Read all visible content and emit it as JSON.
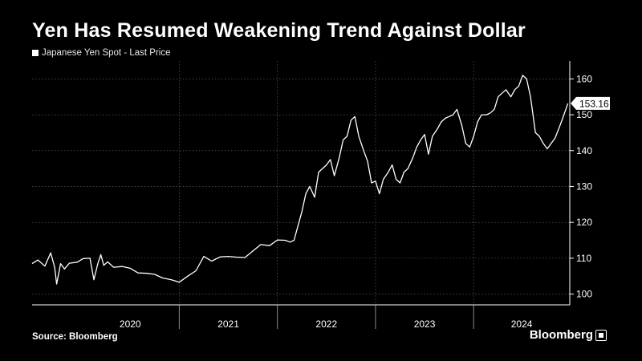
{
  "chart_data": {
    "type": "line",
    "title": "Yen Has Resumed Weakening Trend Against Dollar",
    "legend": "Japanese Yen Spot - Last Price",
    "legend_position": "top-left",
    "source": "Source: Bloomberg",
    "brand": "Bloomberg",
    "x_labels": [
      "2020",
      "2021",
      "2022",
      "2023",
      "2024"
    ],
    "x_range": [
      2019.5,
      2024.98
    ],
    "ylim": [
      97,
      165
    ],
    "yticks": [
      100,
      110,
      120,
      130,
      140,
      150,
      160
    ],
    "last_value_label": "153.16",
    "grid": true,
    "series": [
      {
        "line_color": "#ffffff",
        "x": [
          2019.5,
          2019.56,
          2019.63,
          2019.69,
          2019.73,
          2019.75,
          2019.79,
          2019.83,
          2019.88,
          2019.96,
          2020.02,
          2020.09,
          2020.13,
          2020.17,
          2020.2,
          2020.23,
          2020.27,
          2020.33,
          2020.42,
          2020.5,
          2020.58,
          2020.67,
          2020.75,
          2020.83,
          2020.92,
          2021.0,
          2021.08,
          2021.17,
          2021.25,
          2021.33,
          2021.42,
          2021.5,
          2021.58,
          2021.67,
          2021.75,
          2021.83,
          2021.92,
          2022.0,
          2022.08,
          2022.13,
          2022.17,
          2022.21,
          2022.25,
          2022.29,
          2022.33,
          2022.38,
          2022.42,
          2022.46,
          2022.5,
          2022.54,
          2022.58,
          2022.63,
          2022.67,
          2022.71,
          2022.75,
          2022.79,
          2022.83,
          2022.88,
          2022.92,
          2022.96,
          2023.0,
          2023.04,
          2023.08,
          2023.13,
          2023.17,
          2023.21,
          2023.25,
          2023.29,
          2023.33,
          2023.38,
          2023.42,
          2023.46,
          2023.5,
          2023.54,
          2023.58,
          2023.63,
          2023.67,
          2023.71,
          2023.75,
          2023.79,
          2023.83,
          2023.88,
          2023.92,
          2023.96,
          2024.0,
          2024.04,
          2024.08,
          2024.13,
          2024.17,
          2024.21,
          2024.25,
          2024.29,
          2024.33,
          2024.38,
          2024.42,
          2024.46,
          2024.5,
          2024.54,
          2024.58,
          2024.63,
          2024.67,
          2024.71,
          2024.75,
          2024.79,
          2024.83,
          2024.88,
          2024.92,
          2024.96
        ],
        "y": [
          108.5,
          109.5,
          107.8,
          111.5,
          107.5,
          102.8,
          108.5,
          107.0,
          108.6,
          108.9,
          109.9,
          110.0,
          104.0,
          108.5,
          111.0,
          108.0,
          109.0,
          107.5,
          107.7,
          107.2,
          105.9,
          105.8,
          105.5,
          104.5,
          104.0,
          103.3,
          104.9,
          106.5,
          110.5,
          109.2,
          110.4,
          110.5,
          110.3,
          110.2,
          112.0,
          113.8,
          113.5,
          115.1,
          115.0,
          114.5,
          115.0,
          119.0,
          123.0,
          128.0,
          130.0,
          127.0,
          134.0,
          135.0,
          136.0,
          137.5,
          133.0,
          138.0,
          143.0,
          144.0,
          148.5,
          149.5,
          144.0,
          140.0,
          137.0,
          131.0,
          131.5,
          128.0,
          132.0,
          134.0,
          136.0,
          132.0,
          131.0,
          134.0,
          135.0,
          138.0,
          141.0,
          143.0,
          144.5,
          139.0,
          144.0,
          146.0,
          148.0,
          149.0,
          149.5,
          150.0,
          151.5,
          147.0,
          142.0,
          141.0,
          144.0,
          148.0,
          150.0,
          150.0,
          150.5,
          151.5,
          155.0,
          156.0,
          157.0,
          155.0,
          157.0,
          158.0,
          161.0,
          160.0,
          155.0,
          145.0,
          144.0,
          142.0,
          140.5,
          142.0,
          143.5,
          147.0,
          150.0,
          153.16
        ]
      }
    ]
  }
}
